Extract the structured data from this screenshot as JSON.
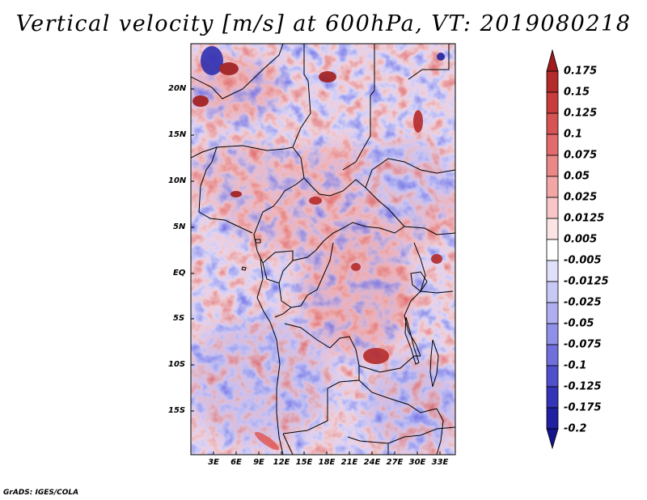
{
  "title": "Vertical velocity [m/s] at 600hPa, VT: 2019080218",
  "lat_labels": [
    "20N",
    "15N",
    "10N",
    "5N",
    "EQ",
    "5S",
    "10S",
    "15S"
  ],
  "lon_labels": [
    "3E",
    "6E",
    "9E",
    "12E",
    "15E",
    "18E",
    "21E",
    "24E",
    "27E",
    "30E",
    "33E"
  ],
  "colorbar": {
    "labels": [
      "0.175",
      "0.15",
      "0.125",
      "0.1",
      "0.075",
      "0.05",
      "0.025",
      "0.0125",
      "0.005",
      "-0.005",
      "-0.0125",
      "-0.025",
      "-0.05",
      "-0.075",
      "-0.1",
      "-0.125",
      "-0.175",
      "-0.2"
    ],
    "colors": [
      "#a01c1c",
      "#b52a2a",
      "#c93c3c",
      "#d85353",
      "#e26c6c",
      "#ea8888",
      "#f2a6a6",
      "#f8c6c6",
      "#fce4e4",
      "#ffffff",
      "#e0e0fa",
      "#c8c8f5",
      "#aeaef0",
      "#9090e8",
      "#7070dc",
      "#5050cc",
      "#3434b8",
      "#2020a0",
      "#14148c"
    ]
  },
  "credit": "GrADS: IGES/COLA"
}
